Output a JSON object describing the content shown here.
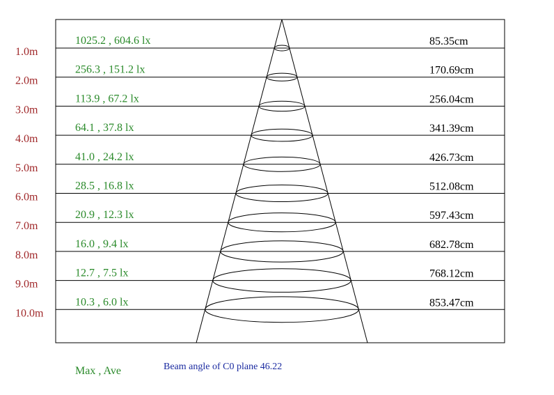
{
  "rows": [
    {
      "distance": "1.0m",
      "illuminance": "1025.2 , 604.6 lx",
      "diameter": "85.35cm"
    },
    {
      "distance": "2.0m",
      "illuminance": "256.3 , 151.2 lx",
      "diameter": "170.69cm"
    },
    {
      "distance": "3.0m",
      "illuminance": "113.9 , 67.2 lx",
      "diameter": "256.04cm"
    },
    {
      "distance": "4.0m",
      "illuminance": "64.1 , 37.8 lx",
      "diameter": "341.39cm"
    },
    {
      "distance": "5.0m",
      "illuminance": "41.0 , 24.2 lx",
      "diameter": "426.73cm"
    },
    {
      "distance": "6.0m",
      "illuminance": "28.5 , 16.8 lx",
      "diameter": "512.08cm"
    },
    {
      "distance": "7.0m",
      "illuminance": "20.9 , 12.3 lx",
      "diameter": "597.43cm"
    },
    {
      "distance": "8.0m",
      "illuminance": "16.0 , 9.4 lx",
      "diameter": "682.78cm"
    },
    {
      "distance": "9.0m",
      "illuminance": "12.7 , 7.5 lx",
      "diameter": "768.12cm"
    },
    {
      "distance": "10.0m",
      "illuminance": "10.3 , 6.0 lx",
      "diameter": "853.47cm"
    }
  ],
  "legend": {
    "max_ave": "Max , Ave",
    "beam_angle": "Beam angle of C0 plane 46.22"
  }
}
